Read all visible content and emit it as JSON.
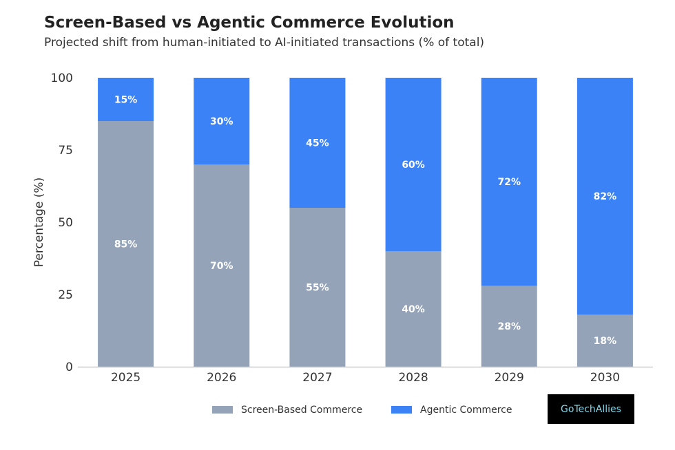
{
  "chart_data": {
    "type": "bar",
    "stacked": true,
    "title": "Screen-Based vs Agentic Commerce Evolution",
    "subtitle": "Projected shift from human-initiated to AI-initiated transactions (% of total)",
    "xlabel": "",
    "ylabel": "Percentage (%)",
    "ylim": [
      0,
      100
    ],
    "yticks": [
      0,
      25,
      50,
      75,
      100
    ],
    "grid": false,
    "legend": "bottom",
    "categories": [
      "2025",
      "2026",
      "2027",
      "2028",
      "2029",
      "2030"
    ],
    "series": [
      {
        "name": "Screen-Based Commerce",
        "color": "#94a3b8",
        "values": [
          85,
          70,
          55,
          40,
          28,
          18
        ]
      },
      {
        "name": "Agentic Commerce",
        "color": "#3b82f6",
        "values": [
          15,
          30,
          45,
          60,
          72,
          82
        ]
      }
    ]
  },
  "logo": {
    "text": "GoTechAllies"
  }
}
